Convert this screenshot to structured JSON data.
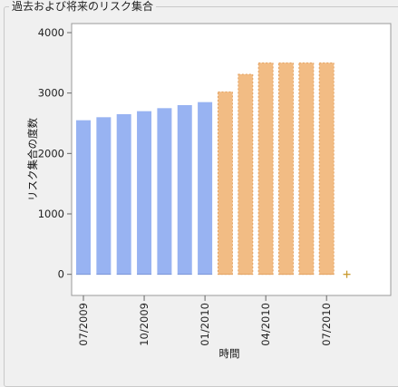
{
  "panel": {
    "title": "過去および将来のリスク集合"
  },
  "colors": {
    "past": "#98b3f2",
    "future": "#f2bc84",
    "future_border": "#e3a262",
    "marker": "#c99a2e",
    "plot_bg": "#ffffff",
    "grid": "#d6d6d6"
  },
  "chart_data": {
    "type": "bar",
    "title": "",
    "xlabel": "時間",
    "ylabel": "リスク集合の度数",
    "ylim": [
      -350,
      4150
    ],
    "yticks": [
      0,
      1000,
      2000,
      3000,
      4000
    ],
    "ytick_labels": [
      "0",
      "1000",
      "2000",
      "3000",
      "4000"
    ],
    "categories": [
      "2009-07",
      "2009-08",
      "2009-09",
      "2009-10",
      "2009-11",
      "2009-12",
      "2010-01",
      "2010-02",
      "2010-03",
      "2010-04",
      "2010-05",
      "2010-06",
      "2010-07"
    ],
    "series": [
      {
        "kind": "past",
        "values": [
          2550,
          2600,
          2650,
          2700,
          2750,
          2800,
          2850,
          null,
          null,
          null,
          null,
          null,
          null
        ]
      },
      {
        "kind": "future",
        "values": [
          null,
          null,
          null,
          null,
          null,
          null,
          null,
          3020,
          3310,
          3500,
          3500,
          3500,
          3500
        ]
      }
    ],
    "marker": {
      "x": "2010-08",
      "y": 0,
      "symbol": "+"
    },
    "xticks": [
      {
        "at": "2009-07",
        "label": "07/2009"
      },
      {
        "at": "2009-10",
        "label": "10/2009"
      },
      {
        "at": "2010-01",
        "label": "01/2010"
      },
      {
        "at": "2010-04",
        "label": "04/2010"
      },
      {
        "at": "2010-07",
        "label": "07/2010"
      }
    ]
  }
}
